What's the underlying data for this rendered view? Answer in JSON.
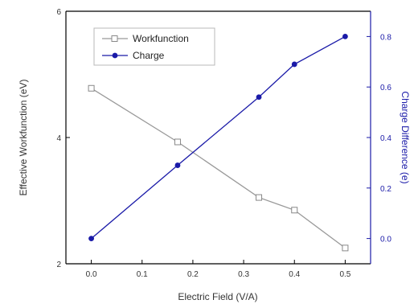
{
  "chart_data": {
    "type": "line",
    "xlabel": "Electric Field (V/A)",
    "ylabel": "Effective Workfunction (eV)",
    "y2label": "Charge Difference (e)",
    "xlim": [
      -0.05,
      0.55
    ],
    "ylim": [
      2,
      6
    ],
    "y2lim": [
      -0.1,
      0.9
    ],
    "xticks": [
      "0.0",
      "0.1",
      "0.2",
      "0.3",
      "0.4",
      "0.5"
    ],
    "yticks": [
      "2",
      "4",
      "6"
    ],
    "y2ticks": [
      "0.0",
      "0.2",
      "0.4",
      "0.6",
      "0.8"
    ],
    "legend": "top-left",
    "grid": false,
    "series": [
      {
        "name": "Workfunction",
        "axis": "left",
        "color": "#999999",
        "marker": "open-square",
        "x": [
          0.0,
          0.17,
          0.33,
          0.4,
          0.5
        ],
        "y": [
          4.78,
          3.93,
          3.05,
          2.85,
          2.25
        ]
      },
      {
        "name": "Charge",
        "axis": "right",
        "color": "#1a1aa8",
        "marker": "filled-circle",
        "x": [
          0.0,
          0.17,
          0.33,
          0.4,
          0.5
        ],
        "y": [
          0.0,
          0.29,
          0.56,
          0.69,
          0.8
        ]
      }
    ]
  }
}
